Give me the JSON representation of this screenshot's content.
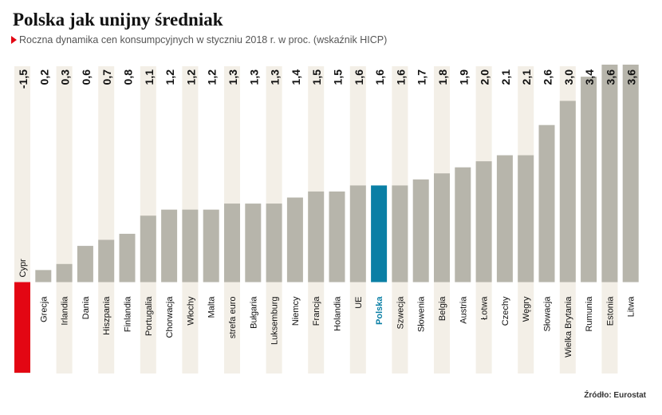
{
  "header": {
    "title": "Polska jak unijny średniak",
    "subtitle": "Roczna dynamika cen konsumpcyjnych w styczniu 2018 r. w proc. (wskaźnik HICP)"
  },
  "footer": {
    "source": "Źródło: Eurostat"
  },
  "chart_data": {
    "type": "bar",
    "categories": [
      "Cypr",
      "Grecja",
      "Irlandia",
      "Dania",
      "Hiszpania",
      "Finlandia",
      "Portugalia",
      "Chorwacja",
      "Włochy",
      "Malta",
      "strefa euro",
      "Bułgaria",
      "Luksemburg",
      "Niemcy",
      "Francja",
      "Holandia",
      "UE",
      "Polska",
      "Szwecja",
      "Słowenia",
      "Belgia",
      "Austria",
      "Łotwa",
      "Czechy",
      "Węgry",
      "Słowacja",
      "Wielka Brytania",
      "Rumunia",
      "Estonia",
      "Litwa"
    ],
    "values": [
      -1.5,
      0.2,
      0.3,
      0.6,
      0.7,
      0.8,
      1.1,
      1.2,
      1.2,
      1.2,
      1.3,
      1.3,
      1.3,
      1.4,
      1.5,
      1.5,
      1.6,
      1.6,
      1.6,
      1.7,
      1.8,
      1.9,
      2.0,
      2.1,
      2.1,
      2.6,
      3.0,
      3.4,
      3.6,
      3.6
    ],
    "value_labels": [
      "-1,5",
      "0,2",
      "0,3",
      "0,6",
      "0,7",
      "0,8",
      "1,1",
      "1,2",
      "1,2",
      "1,2",
      "1,3",
      "1,3",
      "1,3",
      "1,4",
      "1,5",
      "1,5",
      "1,6",
      "1,6",
      "1,6",
      "1,7",
      "1,8",
      "1,9",
      "2,0",
      "2,1",
      "2,1",
      "2,6",
      "3,0",
      "3,4",
      "3,6",
      "3,6"
    ],
    "highlight": "Polska",
    "ylim": [
      -1.5,
      3.6
    ],
    "colors": {
      "default": "#b7b5ab",
      "highlight": "#0a7fa5",
      "negative": "#e30613",
      "band": "#f3efe7",
      "highlight_label": "#0a7fa5"
    }
  }
}
